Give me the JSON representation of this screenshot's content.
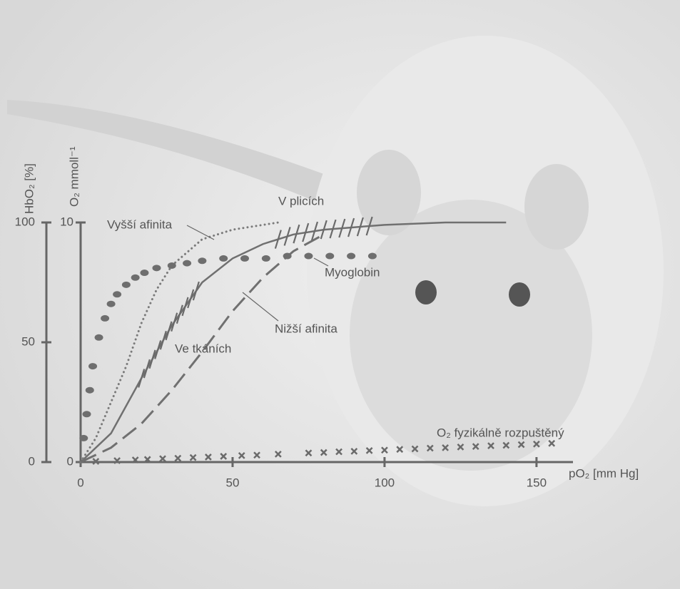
{
  "chart_data": {
    "type": "line",
    "x_label": "pO₂ [mm Hg]",
    "y_label": "HbO₂ [%]",
    "y2_label": "O₂ mmoll⁻¹",
    "xlim": [
      0,
      162
    ],
    "xticks": [
      0,
      50,
      100,
      150
    ],
    "ylim": [
      0,
      100
    ],
    "yticks": [
      0,
      50,
      100
    ],
    "y2lim": [
      0,
      10
    ],
    "y2ticks": [
      0,
      10
    ],
    "series": [
      {
        "style": "solid",
        "color": "#707070",
        "x": [
          0,
          10,
          20,
          30,
          40,
          50,
          60,
          70,
          80,
          90,
          100,
          120,
          140
        ],
        "values": [
          0,
          12,
          35,
          57,
          75,
          85,
          91,
          95,
          97,
          98,
          99,
          100,
          100
        ]
      },
      {
        "name": "Vyšší afinita",
        "style": "dotted",
        "color": "#7a7a7a",
        "x": [
          0,
          5,
          10,
          15,
          20,
          25,
          30,
          40,
          50,
          60,
          65
        ],
        "values": [
          0,
          10,
          25,
          40,
          58,
          72,
          82,
          93,
          97,
          99,
          100
        ]
      },
      {
        "name": "Nižší afinita",
        "style": "dashed",
        "color": "#707070",
        "x": [
          0,
          10,
          20,
          30,
          40,
          50,
          60,
          70,
          80
        ],
        "values": [
          0,
          6,
          16,
          30,
          46,
          63,
          77,
          88,
          95
        ]
      },
      {
        "name": "Myoglobin",
        "style": "dots",
        "color": "#6e6e6e",
        "x": [
          1,
          2,
          3,
          4,
          6,
          8,
          10,
          12,
          15,
          18,
          21,
          25,
          30,
          35,
          40,
          47,
          54,
          61,
          68,
          75,
          82,
          89,
          96
        ],
        "values": [
          10,
          20,
          30,
          40,
          52,
          60,
          66,
          70,
          74,
          77,
          79,
          81,
          82,
          83,
          84,
          85,
          85,
          85,
          86,
          86,
          86,
          86,
          86
        ]
      },
      {
        "name": "O₂ fyzikálně rozpuštěný",
        "style": "cross",
        "color": "#6a6a6a",
        "x": [
          5,
          12,
          18,
          22,
          27,
          32,
          37,
          42,
          47,
          53,
          58,
          65,
          75,
          80,
          85,
          90,
          95,
          100,
          105,
          110,
          115,
          120,
          125,
          130,
          135,
          140,
          145,
          150,
          155
        ],
        "values": [
          0.3,
          0.6,
          0.9,
          1.1,
          1.4,
          1.6,
          1.9,
          2.1,
          2.4,
          2.7,
          2.9,
          3.3,
          3.8,
          4,
          4.3,
          4.5,
          4.8,
          5,
          5.3,
          5.5,
          5.8,
          6,
          6.3,
          6.5,
          6.8,
          7,
          7.3,
          7.5,
          7.8
        ]
      }
    ],
    "annotations": [
      {
        "text": "V plicích",
        "x_range": [
          65,
          95
        ]
      },
      {
        "text": "Ve tkáních",
        "x_range": [
          20,
          38
        ]
      }
    ]
  }
}
